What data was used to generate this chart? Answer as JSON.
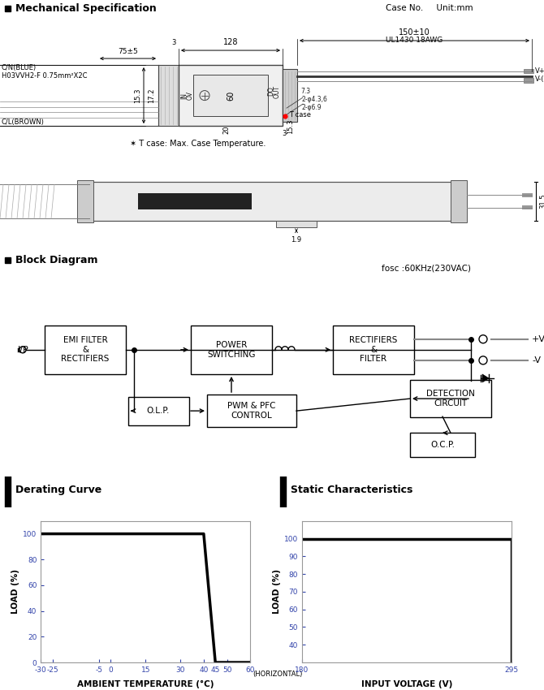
{
  "bg_color": "#ffffff",
  "section_titles": [
    "Mechanical Specification",
    "Block Diagram",
    "Derating Curve",
    "Static Characteristics"
  ],
  "case_no_text": "Case No.     Unit:mm",
  "fosc_text": "fosc :60KHz(230VAC)",
  "tcase_note": "✶ T case: Max. Case Temperature.",
  "derating_curve": {
    "x": [
      -30,
      40,
      45,
      60
    ],
    "y": [
      100,
      100,
      0,
      0
    ],
    "xlim": [
      -30,
      60
    ],
    "ylim": [
      0,
      110
    ],
    "xticks": [
      -30,
      -25,
      -5,
      0,
      15,
      30,
      40,
      45,
      50,
      60
    ],
    "xtick_labels": [
      "-30",
      "-25",
      "-5",
      "0",
      "15",
      "30",
      "40",
      "45",
      "50",
      "60"
    ],
    "extra_xlabel": "(HORIZONTAL)",
    "yticks": [
      0,
      20,
      40,
      60,
      80,
      100
    ],
    "xlabel": "AMBIENT TEMPERATURE (°C)",
    "ylabel": "LOAD (%)"
  },
  "static_curve": {
    "xlim": [
      180,
      295
    ],
    "ylim": [
      30,
      110
    ],
    "xticks": [
      180,
      295
    ],
    "yticks": [
      40,
      50,
      60,
      70,
      80,
      90,
      100
    ],
    "xlabel": "INPUT VOLTAGE (V)",
    "ylabel": "LOAD (%)"
  }
}
